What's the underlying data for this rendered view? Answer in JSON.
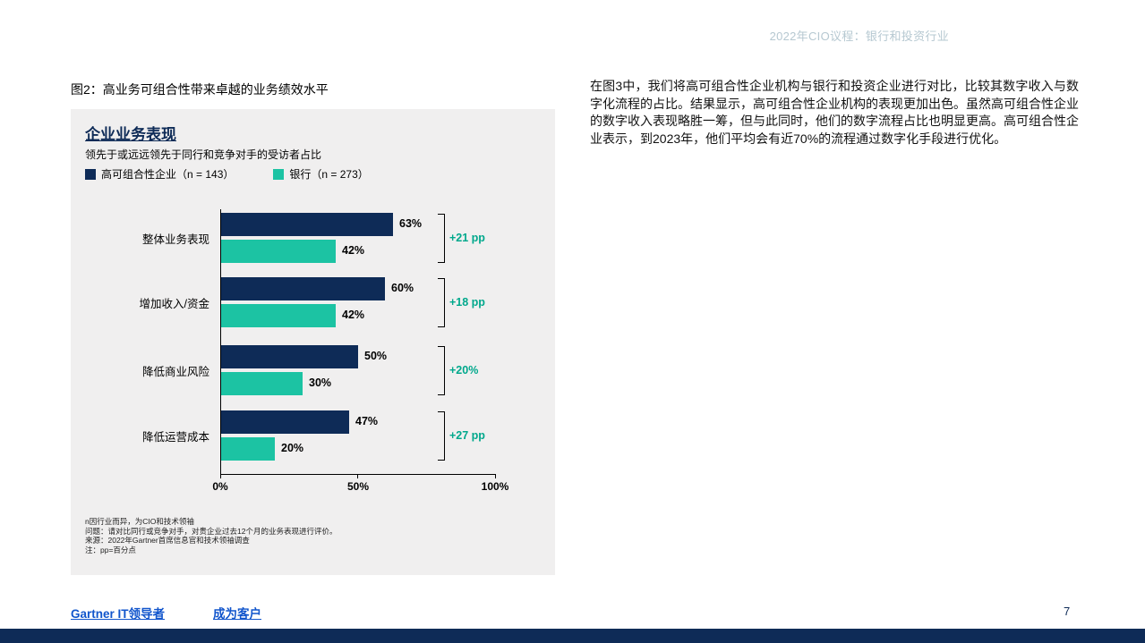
{
  "page": {
    "header_right": "2022年CIO议程：银行和投资行业",
    "figure_caption": "图2：高业务可组合性带来卓越的业务绩效水平",
    "body_paragraph": "在图3中，我们将高可组合性企业机构与银行和投资企业进行对比，比较其数字收入与数字化流程的占比。结果显示，高可组合性企业机构的表现更加出色。虽然高可组合性企业的数字收入表现略胜一筹，但与此同时，他们的数字流程占比也明显更高。高可组合性企业表示，到2023年，他们平均会有近70%的流程通过数字化手段进行优化。",
    "footer": {
      "link_left": "Gartner IT领导者",
      "link_right": "成为客户",
      "page_number": "7"
    }
  },
  "chart_data": {
    "type": "bar",
    "orientation": "horizontal",
    "title": "企业业务表现",
    "subtitle": "领先于或远远领先于同行和竞争对手的受访者占比",
    "legend": [
      {
        "label": "高可组合性企业（n = 143）",
        "color": "#0e2b57"
      },
      {
        "label": "银行（n = 273）",
        "color": "#1cc3a3"
      }
    ],
    "categories": [
      "整体业务表现",
      "增加收入/资金",
      "降低商业风险",
      "降低运营成本"
    ],
    "series": [
      {
        "name": "高可组合性企业",
        "values": [
          63,
          60,
          50,
          47
        ]
      },
      {
        "name": "银行",
        "values": [
          42,
          42,
          30,
          20
        ]
      }
    ],
    "deltas": [
      "+21 pp",
      "+18 pp",
      "+20%",
      "+27 pp"
    ],
    "x_axis": {
      "ticks": [
        "0%",
        "50%",
        "100%"
      ],
      "min": 0,
      "max": 100
    },
    "footnotes": [
      "n因行业而异，为CIO和技术领袖",
      "问题：请对比同行或竞争对手，对贵企业过去12个月的业务表现进行评价。",
      "来源：2022年Gartner首席信息官和技术领袖调查",
      "注：pp=百分点"
    ],
    "colors": {
      "series1": "#0e2b57",
      "series2": "#1cc3a3",
      "delta_text": "#00a88c"
    }
  }
}
